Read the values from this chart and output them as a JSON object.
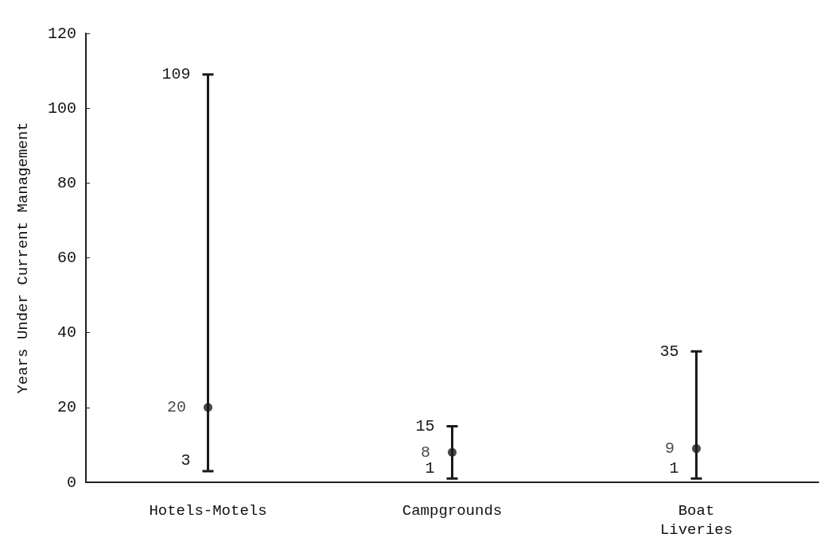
{
  "chart_data": {
    "type": "scatter",
    "ylabel": "Years Under Current Management",
    "categories": [
      "Hotels-Motels",
      "Campgrounds",
      "Boat Liveries"
    ],
    "values": [
      20,
      8,
      9
    ],
    "errors": [
      [
        3,
        109
      ],
      [
        1,
        15
      ],
      [
        1,
        35
      ]
    ],
    "color": "#1a1a1a",
    "marker": "circle",
    "data_labels": true,
    "ylim": [
      0,
      120
    ],
    "yticks": [
      0,
      20,
      40,
      60,
      80,
      100,
      120
    ],
    "annotations": [
      "109",
      "3",
      "15",
      "1",
      "35",
      "1"
    ]
  }
}
